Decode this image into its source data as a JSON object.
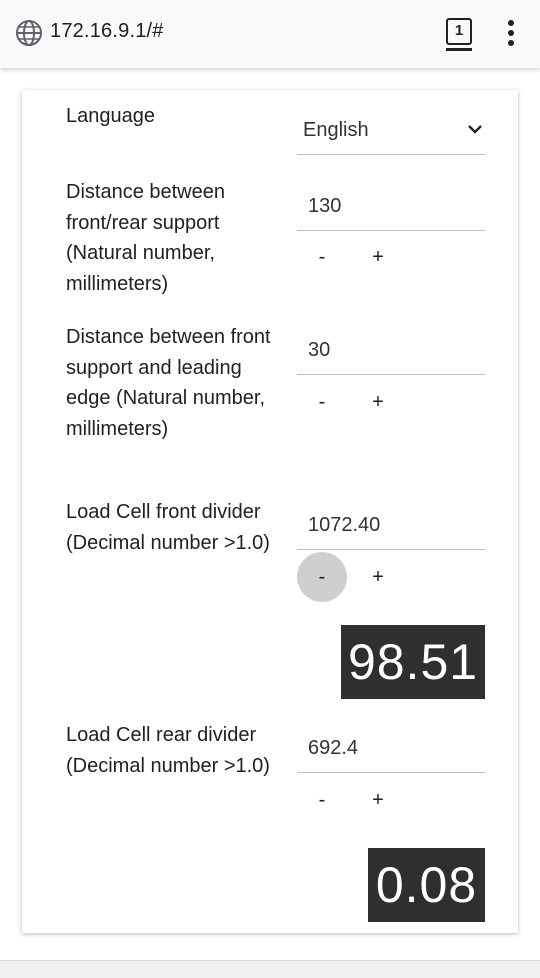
{
  "browser": {
    "url": "172.16.9.1/#",
    "tab_count": "1",
    "icons": {
      "site": "globe-icon",
      "tabs": "tab-switcher-icon",
      "menu": "more-vert-icon"
    }
  },
  "settings": {
    "language": {
      "label": "Language",
      "value": "English"
    },
    "support_distance": {
      "label": "Distance between front/rear support (Natural number, millimeters)",
      "value": "130",
      "minus": "-",
      "plus": "+"
    },
    "leading_edge_distance": {
      "label": "Distance between front support and leading edge (Natural number, millimeters)",
      "value": "30",
      "minus": "-",
      "plus": "+"
    },
    "front_divider": {
      "label": "Load Cell front divider (Decimal number >1.0)",
      "value": "1072.40",
      "minus": "-",
      "plus": "+",
      "reading": "98.51"
    },
    "rear_divider": {
      "label": "Load Cell rear divider (Decimal number >1.0)",
      "value": "692.4",
      "minus": "-",
      "plus": "+",
      "reading": "0.08"
    }
  },
  "colors": {
    "readout_bg": "#2f2f2f",
    "pressed": "#cfcfcf",
    "urlbar": "#f8f9fa"
  }
}
